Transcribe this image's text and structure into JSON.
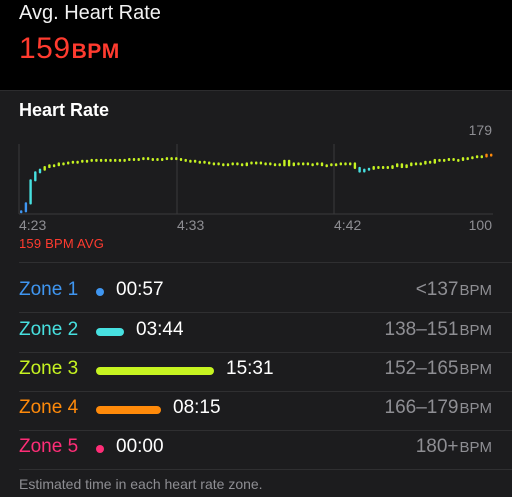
{
  "summary": {
    "label": "Avg. Heart Rate",
    "value": "159",
    "unit": "BPM"
  },
  "chart": {
    "title": "Heart Rate",
    "y_max_label": "179",
    "y_min_label": "100",
    "x_labels": [
      "4:23",
      "4:33",
      "4:42"
    ],
    "avg_label": "159 BPM AVG"
  },
  "chart_data": {
    "type": "scatter",
    "title": "Heart Rate",
    "xlabel": "",
    "ylabel": "",
    "ylim": [
      100,
      179
    ],
    "xlim": [
      0,
      1
    ],
    "x_tick_labels": [
      "4:23",
      "4:33",
      "4:42"
    ],
    "average": 159,
    "grid": true,
    "series": [
      {
        "x": [
          0.0,
          0.01,
          0.02,
          0.03,
          0.04,
          0.05,
          0.06,
          0.07,
          0.08,
          0.09,
          0.1,
          0.11,
          0.12,
          0.13,
          0.14,
          0.15,
          0.16,
          0.17,
          0.18,
          0.19,
          0.2,
          0.21,
          0.22,
          0.23,
          0.24,
          0.25,
          0.26,
          0.27,
          0.28,
          0.29,
          0.3,
          0.31,
          0.32,
          0.33,
          0.34,
          0.35,
          0.36,
          0.37,
          0.38,
          0.39,
          0.4,
          0.41,
          0.42,
          0.43,
          0.44,
          0.45,
          0.46,
          0.47,
          0.48,
          0.49,
          0.5,
          0.51,
          0.52,
          0.53,
          0.54,
          0.55,
          0.56,
          0.57,
          0.58,
          0.59,
          0.6,
          0.61,
          0.62,
          0.63,
          0.64,
          0.65,
          0.66,
          0.67,
          0.68,
          0.69,
          0.7,
          0.71,
          0.72,
          0.73,
          0.74,
          0.75,
          0.76,
          0.77,
          0.78,
          0.79,
          0.8,
          0.81,
          0.82,
          0.83,
          0.84,
          0.85,
          0.86,
          0.87,
          0.88,
          0.89,
          0.9,
          0.91,
          0.92,
          0.93,
          0.94,
          0.95,
          0.96,
          0.97,
          0.98,
          0.99,
          1.0
        ],
        "y": [
          103,
          112,
          138,
          147,
          150,
          153,
          155,
          155,
          157,
          157,
          158,
          159,
          159,
          160,
          160,
          161,
          161,
          161,
          161,
          161,
          161,
          160,
          161,
          162,
          161,
          162,
          163,
          162,
          162,
          162,
          162,
          163,
          163,
          162,
          161,
          160,
          160,
          159,
          159,
          158,
          157,
          157,
          156,
          156,
          156,
          157,
          156,
          155,
          157,
          158,
          158,
          157,
          157,
          156,
          156,
          155,
          160,
          155,
          157,
          156,
          157,
          156,
          156,
          157,
          155,
          155,
          156,
          156,
          157,
          156,
          157,
          152,
          148,
          150,
          151,
          153,
          152,
          153,
          152,
          154,
          156,
          153,
          155,
          157,
          156,
          157,
          159,
          158,
          161,
          160,
          161,
          162,
          161,
          161,
          163,
          163,
          164,
          165,
          165,
          167,
          167
        ],
        "unit": "BPM"
      }
    ]
  },
  "zones": [
    {
      "name": "Zone 1",
      "time": "00:57",
      "range": "<137",
      "unit": "BPM",
      "color": "#3f96f1",
      "fraction": 0.04
    },
    {
      "name": "Zone 2",
      "time": "03:44",
      "range": "138–151",
      "unit": "BPM",
      "color": "#47e0e0",
      "fraction": 0.24
    },
    {
      "name": "Zone 3",
      "time": "15:31",
      "range": "152–165",
      "unit": "BPM",
      "color": "#c6f321",
      "fraction": 1.0
    },
    {
      "name": "Zone 4",
      "time": "08:15",
      "range": "166–179",
      "unit": "BPM",
      "color": "#ff8a0a",
      "fraction": 0.55
    },
    {
      "name": "Zone 5",
      "time": "00:00",
      "range": "180+",
      "unit": "BPM",
      "color": "#ff2d77",
      "fraction": 0.0
    }
  ],
  "footnote": "Estimated time in each heart rate zone."
}
